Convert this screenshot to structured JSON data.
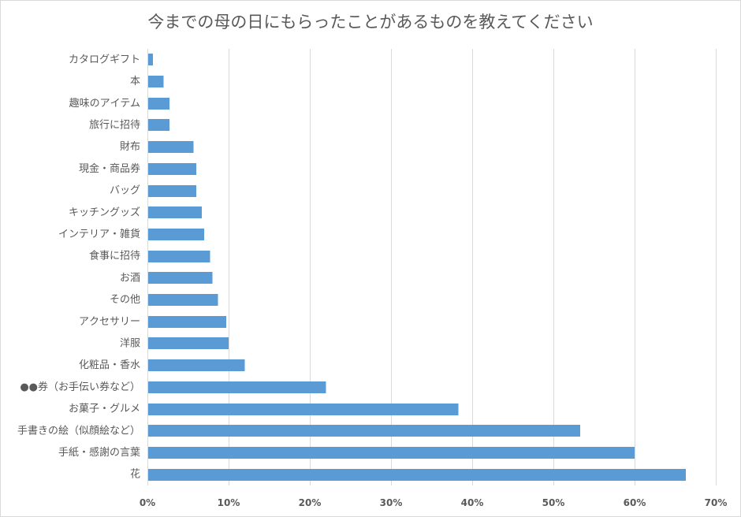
{
  "chart_data": {
    "type": "bar",
    "orientation": "horizontal",
    "title": "今までの母の日にもらったことがあるものを教えてください",
    "categories": [
      "カタログギフト",
      "本",
      "趣味のアイテム",
      "旅行に招待",
      "財布",
      "現金・商品券",
      "バッグ",
      "キッチングッズ",
      "インテリア・雑貨",
      "食事に招待",
      "お酒",
      "その他",
      "アクセサリー",
      "洋服",
      "化粧品・香水",
      "●●券（お手伝い券など）",
      "お菓子・グルメ",
      "手書きの絵（似顔絵など）",
      "手紙・感謝の言葉",
      "花"
    ],
    "values": [
      0.7,
      2.0,
      2.7,
      2.7,
      5.7,
      6.0,
      6.0,
      6.7,
      7.0,
      7.7,
      8.0,
      8.7,
      9.7,
      10.0,
      12.0,
      22.0,
      38.3,
      53.3,
      60.0,
      66.3
    ],
    "xlim": [
      0,
      70
    ],
    "xticks": [
      0,
      10,
      20,
      30,
      40,
      50,
      60,
      70
    ],
    "xtick_labels": [
      "0%",
      "10%",
      "20%",
      "30%",
      "40%",
      "50%",
      "60%",
      "70%"
    ],
    "grid": true,
    "legend": "none",
    "bar_color": "#5B9BD5"
  }
}
